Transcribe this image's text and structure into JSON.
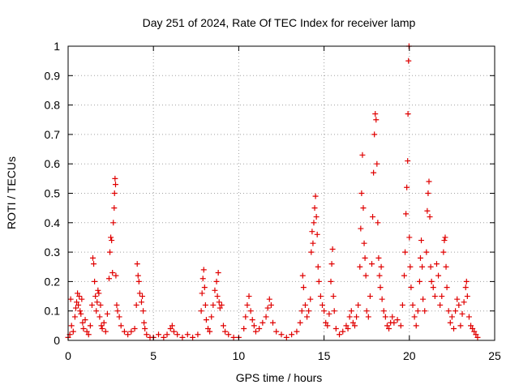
{
  "chart_data": {
    "type": "scatter",
    "title": "Day 251 of 2024, Rate Of TEC Index for receiver lamp",
    "xlabel": "GPS time / hours",
    "ylabel": "ROTI / TECUs",
    "xlim": [
      0,
      25
    ],
    "ylim": [
      0,
      1
    ],
    "x_ticks": [
      0,
      5,
      10,
      15,
      20,
      25
    ],
    "x_tick_labels": [
      "0",
      "5",
      "10",
      "15",
      "20",
      "25"
    ],
    "y_ticks": [
      0,
      0.1,
      0.2,
      0.3,
      0.4,
      0.5,
      0.6,
      0.7,
      0.8,
      0.9,
      1
    ],
    "y_tick_labels": [
      "0",
      "0.1",
      "0.2",
      "0.3",
      "0.4",
      "0.5",
      "0.6",
      "0.7",
      "0.8",
      "0.9",
      "1"
    ],
    "grid": true,
    "marker": "+",
    "marker_color": "#e00000",
    "series": [
      {
        "points": [
          [
            0.0,
            0.01
          ],
          [
            0.1,
            0.02
          ],
          [
            0.15,
            0.14
          ],
          [
            0.2,
            0.05
          ],
          [
            0.3,
            0.03
          ],
          [
            0.4,
            0.08
          ],
          [
            0.45,
            0.11
          ],
          [
            0.5,
            0.13
          ],
          [
            0.55,
            0.16
          ],
          [
            0.6,
            0.12
          ],
          [
            0.65,
            0.15
          ],
          [
            0.7,
            0.1
          ],
          [
            0.75,
            0.09
          ],
          [
            0.8,
            0.14
          ],
          [
            0.85,
            0.06
          ],
          [
            0.9,
            0.04
          ],
          [
            1.0,
            0.07
          ],
          [
            1.1,
            0.03
          ],
          [
            1.2,
            0.02
          ],
          [
            1.3,
            0.05
          ],
          [
            1.4,
            0.12
          ],
          [
            1.45,
            0.28
          ],
          [
            1.5,
            0.26
          ],
          [
            1.55,
            0.2
          ],
          [
            1.6,
            0.15
          ],
          [
            1.65,
            0.1
          ],
          [
            1.7,
            0.13
          ],
          [
            1.75,
            0.17
          ],
          [
            1.8,
            0.16
          ],
          [
            1.85,
            0.08
          ],
          [
            1.9,
            0.12
          ],
          [
            1.95,
            0.05
          ],
          [
            2.0,
            0.04
          ],
          [
            2.1,
            0.06
          ],
          [
            2.2,
            0.03
          ],
          [
            2.3,
            0.09
          ],
          [
            2.4,
            0.21
          ],
          [
            2.45,
            0.3
          ],
          [
            2.5,
            0.35
          ],
          [
            2.55,
            0.34
          ],
          [
            2.6,
            0.23
          ],
          [
            2.65,
            0.4
          ],
          [
            2.7,
            0.45
          ],
          [
            2.72,
            0.5
          ],
          [
            2.75,
            0.55
          ],
          [
            2.78,
            0.53
          ],
          [
            2.8,
            0.22
          ],
          [
            2.85,
            0.12
          ],
          [
            2.9,
            0.1
          ],
          [
            3.0,
            0.08
          ],
          [
            3.1,
            0.05
          ],
          [
            3.3,
            0.03
          ],
          [
            3.5,
            0.02
          ],
          [
            3.7,
            0.03
          ],
          [
            3.9,
            0.04
          ],
          [
            4.0,
            0.12
          ],
          [
            4.05,
            0.26
          ],
          [
            4.1,
            0.22
          ],
          [
            4.15,
            0.2
          ],
          [
            4.2,
            0.16
          ],
          [
            4.3,
            0.13
          ],
          [
            4.35,
            0.15
          ],
          [
            4.4,
            0.1
          ],
          [
            4.45,
            0.06
          ],
          [
            4.5,
            0.04
          ],
          [
            4.6,
            0.02
          ],
          [
            4.8,
            0.01
          ],
          [
            5.0,
            0.01
          ],
          [
            5.3,
            0.02
          ],
          [
            5.6,
            0.01
          ],
          [
            5.8,
            0.02
          ],
          [
            6.0,
            0.04
          ],
          [
            6.1,
            0.05
          ],
          [
            6.2,
            0.03
          ],
          [
            6.4,
            0.02
          ],
          [
            6.7,
            0.01
          ],
          [
            7.0,
            0.02
          ],
          [
            7.3,
            0.01
          ],
          [
            7.6,
            0.02
          ],
          [
            7.8,
            0.1
          ],
          [
            7.85,
            0.16
          ],
          [
            7.9,
            0.21
          ],
          [
            7.95,
            0.24
          ],
          [
            8.0,
            0.18
          ],
          [
            8.05,
            0.12
          ],
          [
            8.1,
            0.07
          ],
          [
            8.2,
            0.04
          ],
          [
            8.3,
            0.03
          ],
          [
            8.4,
            0.08
          ],
          [
            8.5,
            0.12
          ],
          [
            8.6,
            0.17
          ],
          [
            8.7,
            0.2
          ],
          [
            8.75,
            0.15
          ],
          [
            8.8,
            0.23
          ],
          [
            8.85,
            0.13
          ],
          [
            8.9,
            0.11
          ],
          [
            9.0,
            0.12
          ],
          [
            9.1,
            0.05
          ],
          [
            9.2,
            0.03
          ],
          [
            9.4,
            0.02
          ],
          [
            9.7,
            0.01
          ],
          [
            10.0,
            0.01
          ],
          [
            10.3,
            0.04
          ],
          [
            10.4,
            0.08
          ],
          [
            10.5,
            0.12
          ],
          [
            10.6,
            0.15
          ],
          [
            10.7,
            0.1
          ],
          [
            10.8,
            0.07
          ],
          [
            10.9,
            0.05
          ],
          [
            11.0,
            0.03
          ],
          [
            11.2,
            0.04
          ],
          [
            11.4,
            0.06
          ],
          [
            11.6,
            0.08
          ],
          [
            11.7,
            0.11
          ],
          [
            11.8,
            0.14
          ],
          [
            11.9,
            0.12
          ],
          [
            12.0,
            0.06
          ],
          [
            12.2,
            0.03
          ],
          [
            12.5,
            0.02
          ],
          [
            12.8,
            0.01
          ],
          [
            13.1,
            0.02
          ],
          [
            13.4,
            0.03
          ],
          [
            13.6,
            0.06
          ],
          [
            13.7,
            0.1
          ],
          [
            13.75,
            0.22
          ],
          [
            13.8,
            0.18
          ],
          [
            13.9,
            0.12
          ],
          [
            14.0,
            0.08
          ],
          [
            14.1,
            0.1
          ],
          [
            14.2,
            0.14
          ],
          [
            14.25,
            0.3
          ],
          [
            14.3,
            0.37
          ],
          [
            14.35,
            0.33
          ],
          [
            14.4,
            0.4
          ],
          [
            14.45,
            0.45
          ],
          [
            14.5,
            0.49
          ],
          [
            14.55,
            0.42
          ],
          [
            14.6,
            0.36
          ],
          [
            14.65,
            0.25
          ],
          [
            14.7,
            0.2
          ],
          [
            14.8,
            0.15
          ],
          [
            14.9,
            0.12
          ],
          [
            15.0,
            0.1
          ],
          [
            15.1,
            0.06
          ],
          [
            15.2,
            0.05
          ],
          [
            15.3,
            0.09
          ],
          [
            15.4,
            0.2
          ],
          [
            15.45,
            0.26
          ],
          [
            15.5,
            0.31
          ],
          [
            15.55,
            0.15
          ],
          [
            15.6,
            0.1
          ],
          [
            15.7,
            0.04
          ],
          [
            15.9,
            0.02
          ],
          [
            16.1,
            0.03
          ],
          [
            16.3,
            0.05
          ],
          [
            16.4,
            0.04
          ],
          [
            16.5,
            0.08
          ],
          [
            16.6,
            0.1
          ],
          [
            16.7,
            0.06
          ],
          [
            16.8,
            0.05
          ],
          [
            16.9,
            0.08
          ],
          [
            17.0,
            0.12
          ],
          [
            17.1,
            0.25
          ],
          [
            17.15,
            0.38
          ],
          [
            17.2,
            0.5
          ],
          [
            17.25,
            0.63
          ],
          [
            17.3,
            0.45
          ],
          [
            17.35,
            0.33
          ],
          [
            17.4,
            0.28
          ],
          [
            17.45,
            0.22
          ],
          [
            17.5,
            0.1
          ],
          [
            17.6,
            0.08
          ],
          [
            17.7,
            0.15
          ],
          [
            17.8,
            0.26
          ],
          [
            17.85,
            0.42
          ],
          [
            17.9,
            0.57
          ],
          [
            17.95,
            0.7
          ],
          [
            18.0,
            0.77
          ],
          [
            18.05,
            0.75
          ],
          [
            18.1,
            0.6
          ],
          [
            18.15,
            0.4
          ],
          [
            18.2,
            0.28
          ],
          [
            18.25,
            0.22
          ],
          [
            18.3,
            0.18
          ],
          [
            18.35,
            0.25
          ],
          [
            18.4,
            0.14
          ],
          [
            18.5,
            0.1
          ],
          [
            18.6,
            0.08
          ],
          [
            18.7,
            0.05
          ],
          [
            18.8,
            0.04
          ],
          [
            18.9,
            0.06
          ],
          [
            19.0,
            0.08
          ],
          [
            19.1,
            0.06
          ],
          [
            19.3,
            0.07
          ],
          [
            19.5,
            0.05
          ],
          [
            19.6,
            0.12
          ],
          [
            19.7,
            0.22
          ],
          [
            19.75,
            0.3
          ],
          [
            19.8,
            0.43
          ],
          [
            19.85,
            0.52
          ],
          [
            19.9,
            0.61
          ],
          [
            19.92,
            0.77
          ],
          [
            19.95,
            0.95
          ],
          [
            19.98,
            1.0
          ],
          [
            20.0,
            0.35
          ],
          [
            20.05,
            0.25
          ],
          [
            20.1,
            0.18
          ],
          [
            20.2,
            0.12
          ],
          [
            20.3,
            0.08
          ],
          [
            20.4,
            0.05
          ],
          [
            20.5,
            0.1
          ],
          [
            20.6,
            0.2
          ],
          [
            20.65,
            0.28
          ],
          [
            20.7,
            0.34
          ],
          [
            20.75,
            0.25
          ],
          [
            20.8,
            0.14
          ],
          [
            20.9,
            0.1
          ],
          [
            21.0,
            0.3
          ],
          [
            21.05,
            0.44
          ],
          [
            21.1,
            0.5
          ],
          [
            21.15,
            0.54
          ],
          [
            21.2,
            0.42
          ],
          [
            21.25,
            0.25
          ],
          [
            21.3,
            0.2
          ],
          [
            21.4,
            0.18
          ],
          [
            21.5,
            0.15
          ],
          [
            21.6,
            0.26
          ],
          [
            21.7,
            0.22
          ],
          [
            21.8,
            0.12
          ],
          [
            21.9,
            0.15
          ],
          [
            22.0,
            0.3
          ],
          [
            22.05,
            0.34
          ],
          [
            22.1,
            0.35
          ],
          [
            22.15,
            0.25
          ],
          [
            22.2,
            0.18
          ],
          [
            22.3,
            0.1
          ],
          [
            22.4,
            0.06
          ],
          [
            22.5,
            0.08
          ],
          [
            22.6,
            0.04
          ],
          [
            22.7,
            0.1
          ],
          [
            22.8,
            0.14
          ],
          [
            22.9,
            0.12
          ],
          [
            23.0,
            0.05
          ],
          [
            23.1,
            0.09
          ],
          [
            23.2,
            0.13
          ],
          [
            23.3,
            0.18
          ],
          [
            23.35,
            0.2
          ],
          [
            23.4,
            0.15
          ],
          [
            23.5,
            0.08
          ],
          [
            23.6,
            0.05
          ],
          [
            23.7,
            0.04
          ],
          [
            23.8,
            0.03
          ],
          [
            23.9,
            0.02
          ],
          [
            24.0,
            0.01
          ]
        ]
      }
    ]
  }
}
